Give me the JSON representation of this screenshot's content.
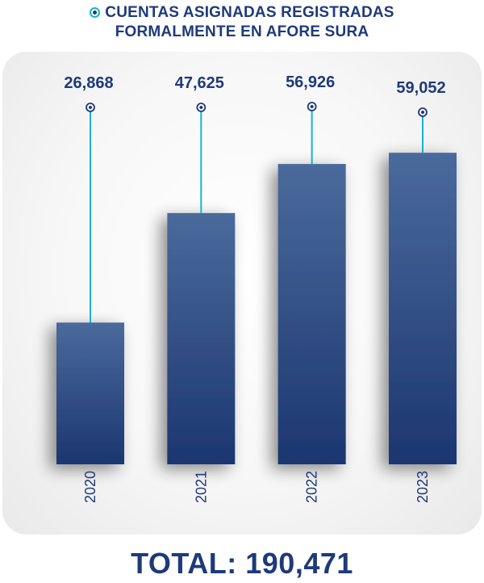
{
  "title_lines": [
    "CUENTAS ASIGNADAS REGISTRADAS",
    "FORMALMENTE EN AFORE SURA"
  ],
  "total_label": "TOTAL:",
  "total_value": "190,471",
  "colors": {
    "bar_top": "#4a6a9c",
    "bar_bottom": "#1c3670",
    "line": "#19b4c8",
    "text": "#1e3a7a"
  },
  "chart_data": {
    "type": "bar",
    "categories": [
      "2020",
      "2021",
      "2022",
      "2023"
    ],
    "values": [
      26868,
      47625,
      56926,
      59052
    ],
    "value_labels": [
      "26,868",
      "47,625",
      "56,926",
      "59,052"
    ],
    "title": "CUENTAS ASIGNADAS REGISTRADAS FORMALMENTE EN AFORE SURA",
    "xlabel": "",
    "ylabel": "",
    "ylim": [
      0,
      60000
    ],
    "grid": false,
    "legend": "none"
  }
}
